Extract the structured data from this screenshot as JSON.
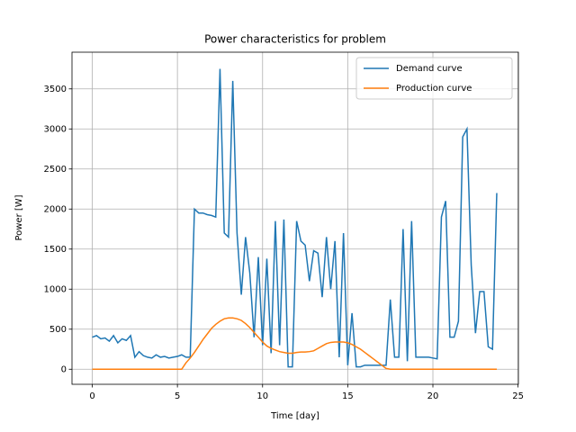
{
  "chart_data": {
    "type": "line",
    "title": "Power characteristics for problem",
    "x_label": "Time [day]",
    "y_label": "Power [W]",
    "x": [
      0,
      0.25,
      0.5,
      0.75,
      1,
      1.25,
      1.5,
      1.75,
      2,
      2.25,
      2.5,
      2.75,
      3,
      3.25,
      3.5,
      3.75,
      4,
      4.25,
      4.5,
      4.75,
      5,
      5.25,
      5.5,
      5.75,
      6,
      6.25,
      6.5,
      6.75,
      7,
      7.25,
      7.5,
      7.75,
      8,
      8.25,
      8.5,
      8.75,
      9,
      9.25,
      9.5,
      9.75,
      10,
      10.25,
      10.5,
      10.75,
      11,
      11.25,
      11.5,
      11.75,
      12,
      12.25,
      12.5,
      12.75,
      13,
      13.25,
      13.5,
      13.75,
      14,
      14.25,
      14.5,
      14.75,
      15,
      15.25,
      15.5,
      15.75,
      16,
      16.25,
      16.5,
      16.75,
      17,
      17.25,
      17.5,
      17.75,
      18,
      18.25,
      18.5,
      18.75,
      19,
      19.25,
      19.5,
      19.75,
      20,
      20.25,
      20.5,
      20.75,
      21,
      21.25,
      21.5,
      21.75,
      22,
      22.25,
      22.5,
      22.75,
      23,
      23.25,
      23.5,
      23.75
    ],
    "series": [
      {
        "name": "Demand curve",
        "color": "#1f77b4",
        "values": [
          400,
          420,
          380,
          390,
          350,
          420,
          330,
          380,
          360,
          420,
          150,
          220,
          170,
          150,
          140,
          180,
          150,
          160,
          140,
          150,
          160,
          180,
          150,
          150,
          2000,
          1950,
          1950,
          1930,
          1920,
          1900,
          3750,
          1700,
          1650,
          3600,
          1700,
          930,
          1650,
          1200,
          400,
          1400,
          300,
          1380,
          200,
          1850,
          300,
          1870,
          30,
          30,
          1850,
          1600,
          1550,
          1100,
          1480,
          1450,
          900,
          1650,
          1000,
          1600,
          150,
          1700,
          50,
          700,
          30,
          30,
          50,
          50,
          50,
          50,
          50,
          50,
          870,
          150,
          150,
          1750,
          100,
          1850,
          150,
          150,
          150,
          150,
          140,
          130,
          1900,
          2100,
          400,
          400,
          600,
          2900,
          3000,
          1300,
          450,
          970,
          970,
          280,
          250,
          2200
        ]
      },
      {
        "name": "Production curve",
        "color": "#ff7f0e",
        "values": [
          0,
          0,
          0,
          0,
          0,
          0,
          0,
          0,
          0,
          0,
          0,
          0,
          0,
          0,
          0,
          0,
          0,
          0,
          0,
          0,
          0,
          0,
          80,
          140,
          210,
          290,
          370,
          440,
          510,
          560,
          600,
          630,
          640,
          640,
          630,
          610,
          570,
          520,
          460,
          400,
          340,
          290,
          260,
          240,
          220,
          210,
          200,
          200,
          210,
          215,
          215,
          220,
          230,
          260,
          290,
          320,
          335,
          340,
          340,
          340,
          330,
          310,
          280,
          250,
          210,
          170,
          130,
          90,
          50,
          10,
          0,
          0,
          0,
          0,
          0,
          0,
          0,
          0,
          0,
          0,
          0,
          0,
          0,
          0,
          0,
          0,
          0,
          0,
          0,
          0,
          0,
          0,
          0,
          0,
          0,
          0
        ]
      }
    ],
    "xlim": [
      -1.19,
      25.02
    ],
    "ylim": [
      -188,
      3958
    ],
    "xticks": [
      0,
      5,
      10,
      15,
      20,
      25
    ],
    "yticks": [
      0,
      500,
      1000,
      1500,
      2000,
      2500,
      3000,
      3500
    ],
    "grid": true,
    "legend": "upper right"
  }
}
